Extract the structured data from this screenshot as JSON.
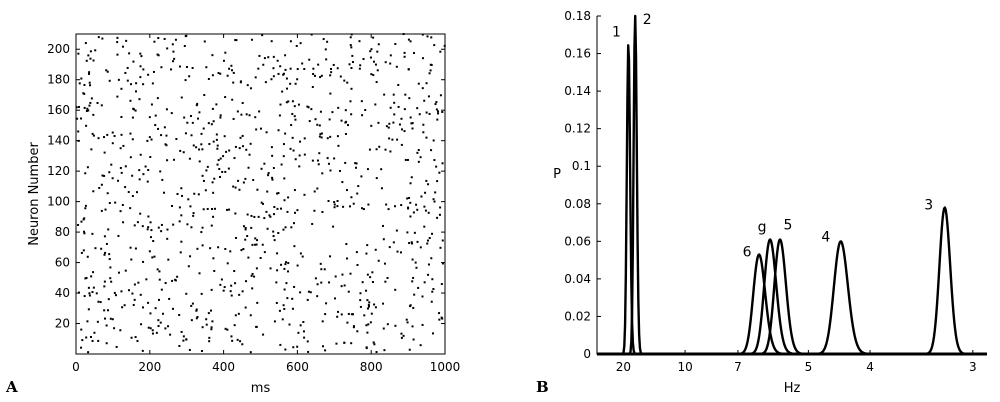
{
  "chart_data": [
    {
      "panel": "A",
      "type": "scatter",
      "xlabel": "ms",
      "ylabel": "Neuron Number",
      "xlim": [
        0,
        1000
      ],
      "ylim": [
        0,
        210
      ],
      "xticks": [
        0,
        200,
        400,
        600,
        800,
        1000
      ],
      "yticks": [
        20,
        40,
        60,
        80,
        100,
        120,
        140,
        160,
        180,
        200
      ],
      "marker": "dot",
      "marker_color": "#000000",
      "grid": false,
      "approx_point_count": 1050,
      "description_of_points": "raster of spike times: one dot per spike, neuron index vs time"
    },
    {
      "panel": "B",
      "type": "line",
      "xlabel": "Hz",
      "ylabel": "P",
      "xscale": "reciprocal",
      "xlim": [
        2.9,
        35
      ],
      "ylim": [
        0,
        0.18
      ],
      "xticks": [
        20,
        10,
        7,
        5,
        4,
        3
      ],
      "yticks": [
        0,
        0.02,
        0.04,
        0.06,
        0.08,
        0.1,
        0.12,
        0.14,
        0.16,
        0.18
      ],
      "grid": false,
      "line_color": "#000000",
      "series": [
        {
          "name": "1",
          "peak_hz": 18.5,
          "peak_p": 0.166,
          "sigma_hz": 0.45
        },
        {
          "name": "2",
          "peak_hz": 16.8,
          "peak_p": 0.182,
          "sigma_hz": 0.36
        },
        {
          "name": "6",
          "peak_hz": 6.25,
          "peak_p": 0.053,
          "sigma_hz": 0.19
        },
        {
          "name": "g",
          "peak_hz": 5.92,
          "peak_p": 0.061,
          "sigma_hz": 0.17
        },
        {
          "name": "5",
          "peak_hz": 5.65,
          "peak_p": 0.061,
          "sigma_hz": 0.15
        },
        {
          "name": "4",
          "peak_hz": 4.42,
          "peak_p": 0.06,
          "sigma_hz": 0.11
        },
        {
          "name": "3",
          "peak_hz": 3.22,
          "peak_p": 0.078,
          "sigma_hz": 0.045
        }
      ]
    }
  ]
}
